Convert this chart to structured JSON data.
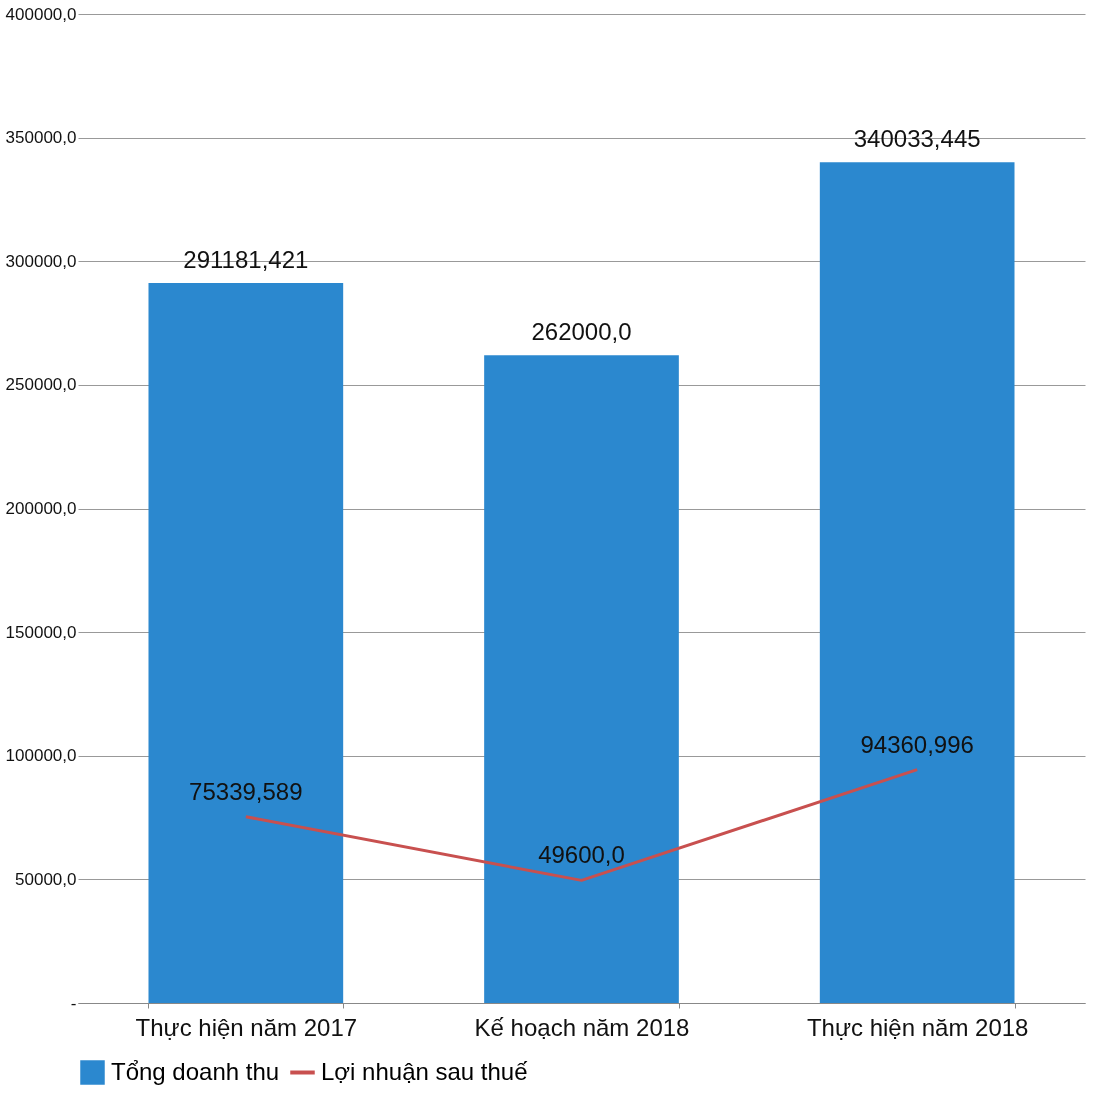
{
  "chart_data": {
    "type": "bar",
    "categories": [
      "Thực hiện năm 2017",
      "Kế hoạch năm 2018",
      "Thực hiện năm 2018"
    ],
    "series": [
      {
        "name": "Tổng doanh thu",
        "color": "#2b88cf",
        "values": [
          291181.421,
          262000.0,
          340033.445
        ],
        "value_labels": [
          "291181,421",
          "262000,0",
          "340033,445"
        ]
      },
      {
        "name": "Lợi nhuận sau thuế",
        "type": "line",
        "color": "#c8504f",
        "values": [
          75339.589,
          49600.0,
          94360.996
        ],
        "value_labels": [
          "75339,589",
          "49600,0",
          "94360,996"
        ]
      }
    ],
    "ylim": [
      0,
      400000
    ],
    "yticks": [
      {
        "value": 0,
        "label": "-"
      },
      {
        "value": 50000,
        "label": "50000,0"
      },
      {
        "value": 100000,
        "label": "100000,0"
      },
      {
        "value": 150000,
        "label": "150000,0"
      },
      {
        "value": 200000,
        "label": "200000,0"
      },
      {
        "value": 250000,
        "label": "250000,0"
      },
      {
        "value": 300000,
        "label": "300000,0"
      },
      {
        "value": 350000,
        "label": "350000,0"
      },
      {
        "value": 400000,
        "label": "400000,0"
      }
    ],
    "grid": "y",
    "legend": "bottom"
  }
}
